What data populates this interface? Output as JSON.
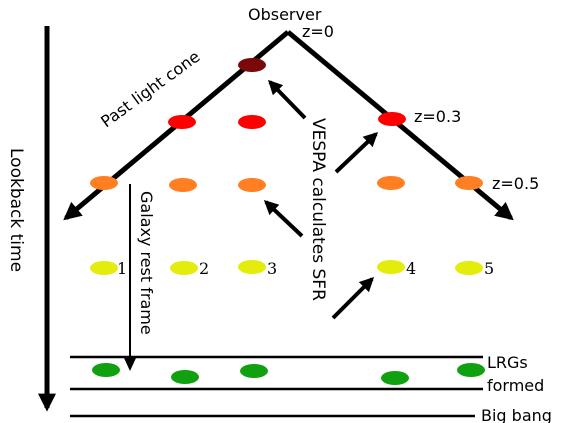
{
  "labels": {
    "observer": "Observer",
    "z0": "z=0",
    "z03": "z=0.3",
    "z05": "z=0.5",
    "past_light_cone": "Past light cone",
    "lookback_time": "Lookback time",
    "galaxy_rest_frame": "Galaxy rest frame",
    "vespa": "VESPA calculates SFR",
    "lrgs_formed_1": "LRGs",
    "lrgs_formed_2": "formed",
    "big_bang": "Big bang"
  },
  "galaxy_numbers": [
    "1",
    "2",
    "3",
    "4",
    "5"
  ],
  "colors": {
    "lines": "#000000",
    "z0_dot": "#7a0a0a",
    "red_dot": "#ff0000",
    "orange_dot": "#ff7f22",
    "yellow_dot": "#e3ec0a",
    "green_dot": "#10a010"
  }
}
